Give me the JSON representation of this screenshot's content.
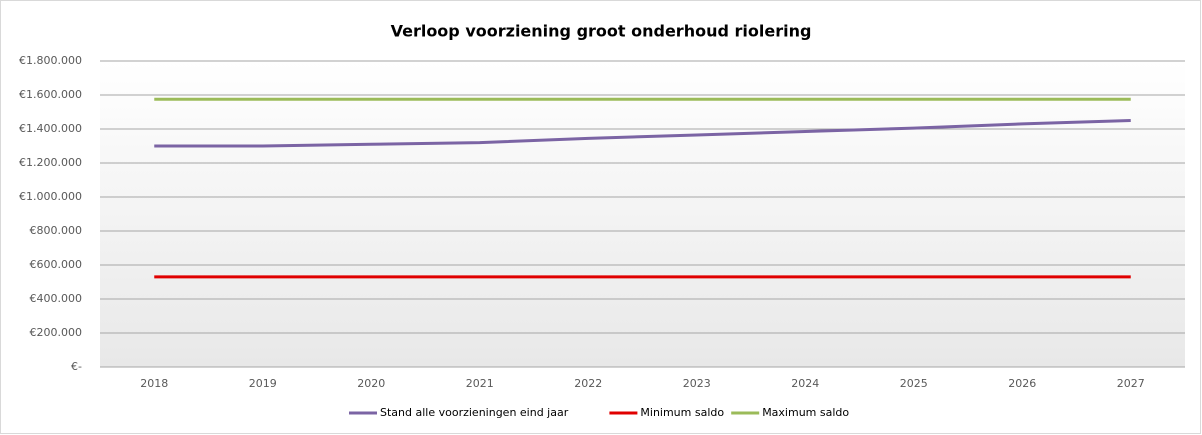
{
  "chart_data": {
    "type": "line",
    "title": "Verloop voorziening groot onderhoud riolering",
    "categories": [
      "2018",
      "2019",
      "2020",
      "2021",
      "2022",
      "2023",
      "2024",
      "2025",
      "2026",
      "2027"
    ],
    "series": [
      {
        "name": "Stand alle voorzieningen eind jaar",
        "color": "#7b64a4",
        "values": [
          1300000,
          1300000,
          1310000,
          1320000,
          1345000,
          1365000,
          1385000,
          1405000,
          1430000,
          1450000
        ]
      },
      {
        "name": "Minimum saldo",
        "color": "#e00000",
        "values": [
          530000,
          530000,
          530000,
          530000,
          530000,
          530000,
          530000,
          530000,
          530000,
          530000
        ]
      },
      {
        "name": "Maximum saldo",
        "color": "#9bbb59",
        "values": [
          1575000,
          1575000,
          1575000,
          1575000,
          1575000,
          1575000,
          1575000,
          1575000,
          1575000,
          1575000
        ]
      }
    ],
    "ylim": [
      0,
      1800000
    ],
    "yticks": [
      {
        "value": 0,
        "label": "€-"
      },
      {
        "value": 200000,
        "label": "€200.000"
      },
      {
        "value": 400000,
        "label": "€400.000"
      },
      {
        "value": 600000,
        "label": "€600.000"
      },
      {
        "value": 800000,
        "label": "€800.000"
      },
      {
        "value": 1000000,
        "label": "€1.000.000"
      },
      {
        "value": 1200000,
        "label": "€1.200.000"
      },
      {
        "value": 1400000,
        "label": "€1.400.000"
      },
      {
        "value": 1600000,
        "label": "€1.600.000"
      },
      {
        "value": 1800000,
        "label": "€1.800.000"
      }
    ],
    "grid": true,
    "legend": "bottom"
  }
}
